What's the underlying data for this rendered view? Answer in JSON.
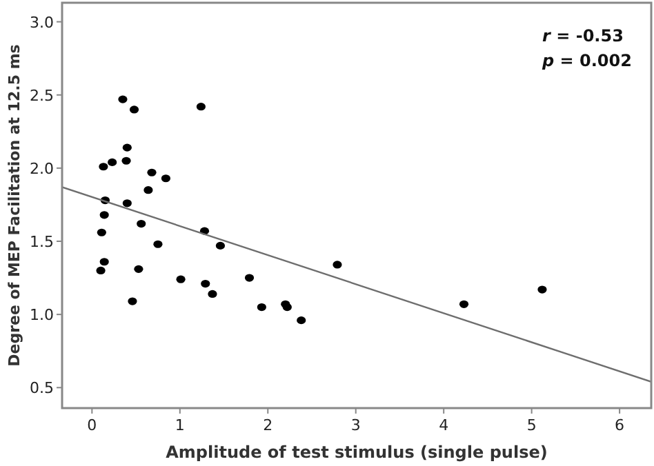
{
  "chart_data": {
    "type": "scatter",
    "xlabel": "Amplitude of test stimulus (single pulse)",
    "ylabel": "Degree of MEP Facilitation at 12.5 ms",
    "annotations": [
      "r = -0.53",
      "p = 0.002"
    ],
    "xlim": [
      -0.34,
      6.36
    ],
    "ylim": [
      0.36,
      3.13
    ],
    "xticks": [
      0,
      1,
      2,
      3,
      4,
      5,
      6
    ],
    "yticks": [
      {
        "value": 0.5,
        "label": "0.5"
      },
      {
        "value": 1,
        "label": "1.0"
      },
      {
        "value": 1.5,
        "label": "1.5"
      },
      {
        "value": 2,
        "label": "2.0"
      },
      {
        "value": 2.5,
        "label": "2.5"
      },
      {
        "value": 3,
        "label": "3.0"
      }
    ],
    "grid": false,
    "series": [
      {
        "color": "#000000",
        "marker": "circle",
        "x": [
          0.35,
          0.48,
          1.24,
          0.4,
          0.39,
          0.23,
          0.13,
          0.68,
          0.84,
          0.64,
          0.15,
          0.4,
          0.14,
          0.56,
          0.11,
          1.28,
          0.75,
          1.46,
          0.14,
          0.1,
          0.53,
          2.79,
          1.01,
          1.79,
          1.29,
          1.37,
          0.46,
          1.93,
          2.2,
          2.22,
          2.38,
          4.23,
          5.12
        ],
        "values": [
          2.47,
          2.4,
          2.42,
          2.14,
          2.05,
          2.04,
          2.01,
          1.97,
          1.93,
          1.85,
          1.78,
          1.76,
          1.68,
          1.62,
          1.56,
          1.57,
          1.48,
          1.47,
          1.36,
          1.3,
          1.31,
          1.34,
          1.24,
          1.25,
          1.21,
          1.14,
          1.09,
          1.05,
          1.07,
          1.05,
          0.96,
          1.07,
          1.17
        ]
      },
      {
        "type": "line",
        "color": "#6e6e6e",
        "x": [
          -0.34,
          6.36
        ],
        "values": [
          1.87,
          0.54
        ]
      }
    ]
  }
}
